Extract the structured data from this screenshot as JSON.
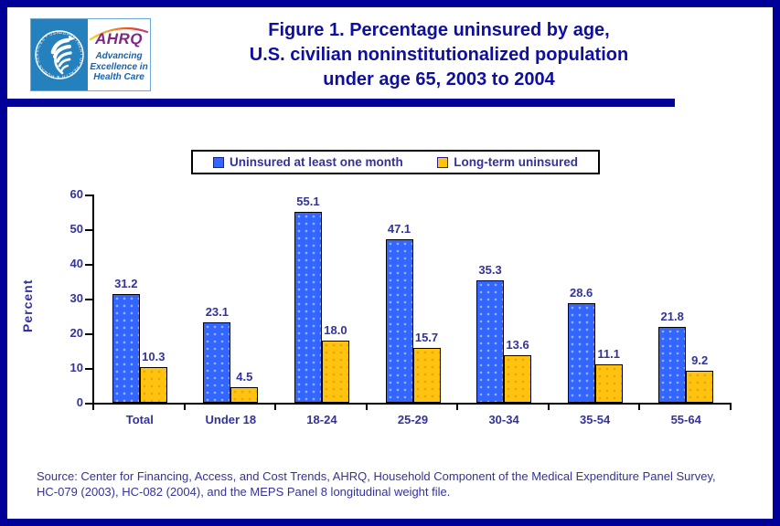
{
  "page": {
    "title_lines": [
      "Figure 1. Percentage uninsured by age,",
      "U.S. civilian noninstitutionalized population",
      "under age 65, 2003 to 2004"
    ],
    "source_lines": [
      "Source: Center for Financing, Access, and Cost Trends, AHRQ, Household Component of the Medical Expenditure Panel Survey,",
      "HC-079 (2003), HC-082 (2004), and the MEPS Panel 8 longitudinal weight file."
    ]
  },
  "logo": {
    "hhs_circle_text": "DEPARTMENT OF HEALTH & HUMAN SERVICES • USA",
    "ahrq_acronym": "AHRQ",
    "tagline_lines": [
      "Advancing",
      "Excellence in",
      "Health Care"
    ]
  },
  "chart_data": {
    "type": "bar",
    "title": "Figure 1. Percentage uninsured by age, U.S. civilian noninstitutionalized population under age 65, 2003 to 2004",
    "categories": [
      "Total",
      "Under 18",
      "18-24",
      "25-29",
      "30-34",
      "35-54",
      "55-64"
    ],
    "series": [
      {
        "name": "Uninsured at least one month",
        "color": "#3366FF",
        "values": [
          31.2,
          23.1,
          55.1,
          47.1,
          35.3,
          28.6,
          21.8
        ]
      },
      {
        "name": "Long-term uninsured",
        "color": "#FFC20E",
        "values": [
          10.3,
          4.5,
          18.0,
          15.7,
          13.6,
          11.1,
          9.2
        ]
      }
    ],
    "xlabel": "",
    "ylabel": "Percent",
    "ylim": [
      0,
      60
    ],
    "yticks": [
      0,
      10,
      20,
      30,
      40,
      50,
      60
    ],
    "grid": false,
    "legend_position": "top",
    "value_labels": true,
    "value_label_decimals": 1
  },
  "colors": {
    "navy": "#000099",
    "title-navy": "#0f0f9e",
    "text-navy": "#333399",
    "bar-blue": "#3366FF",
    "bar-yellow": "#FFC20E",
    "hhs-blue": "#2580BE",
    "ahrq-purple": "#7D2882",
    "tagline-blue": "#1663AF"
  }
}
